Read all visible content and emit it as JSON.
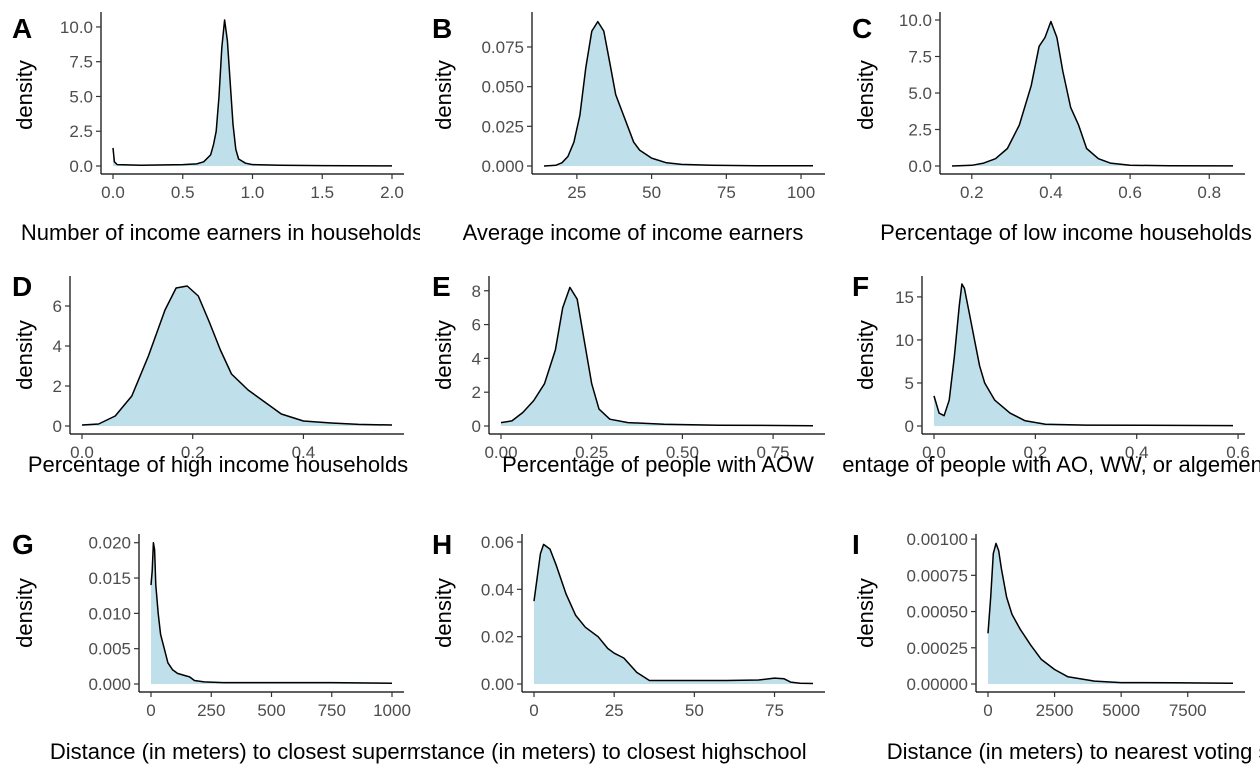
{
  "chart_data": [
    {
      "type": "area",
      "panel_label": "A",
      "xlabel": "Number of income earners in households",
      "ylabel": "density",
      "xlim": [
        0,
        2
      ],
      "ylim": [
        0,
        10.5
      ],
      "xticks": [
        {
          "v": 0,
          "label": "0.0"
        },
        {
          "v": 0.5,
          "label": "0.5"
        },
        {
          "v": 1,
          "label": "1.0"
        },
        {
          "v": 1.5,
          "label": "1.5"
        },
        {
          "v": 2,
          "label": "2.0"
        }
      ],
      "yticks": [
        {
          "v": 0,
          "label": "0.0"
        },
        {
          "v": 2.5,
          "label": "2.5"
        },
        {
          "v": 5,
          "label": "5.0"
        },
        {
          "v": 7.5,
          "label": "7.5"
        },
        {
          "v": 10,
          "label": "10.0"
        }
      ],
      "fill_color": "#bfe0ea",
      "points": [
        [
          0,
          1.3
        ],
        [
          0.01,
          0.3
        ],
        [
          0.03,
          0.1
        ],
        [
          0.2,
          0.05
        ],
        [
          0.5,
          0.1
        ],
        [
          0.6,
          0.15
        ],
        [
          0.65,
          0.3
        ],
        [
          0.7,
          0.8
        ],
        [
          0.72,
          1.5
        ],
        [
          0.74,
          2.5
        ],
        [
          0.76,
          5
        ],
        [
          0.78,
          8.5
        ],
        [
          0.8,
          10.5
        ],
        [
          0.82,
          9
        ],
        [
          0.84,
          6
        ],
        [
          0.86,
          3
        ],
        [
          0.88,
          1.2
        ],
        [
          0.9,
          0.5
        ],
        [
          0.95,
          0.2
        ],
        [
          1.0,
          0.1
        ],
        [
          1.2,
          0.05
        ],
        [
          1.5,
          0.03
        ],
        [
          2.0,
          0.01
        ]
      ]
    },
    {
      "type": "area",
      "panel_label": "B",
      "xlabel": "Average income of income earners",
      "ylabel": "density",
      "xlim": [
        14,
        104
      ],
      "ylim": [
        0,
        0.092
      ],
      "xticks": [
        {
          "v": 25,
          "label": "25"
        },
        {
          "v": 50,
          "label": "50"
        },
        {
          "v": 75,
          "label": "75"
        },
        {
          "v": 100,
          "label": "100"
        }
      ],
      "yticks": [
        {
          "v": 0,
          "label": "0.000"
        },
        {
          "v": 0.025,
          "label": "0.025"
        },
        {
          "v": 0.05,
          "label": "0.050"
        },
        {
          "v": 0.075,
          "label": "0.075"
        }
      ],
      "fill_color": "#bfe0ea",
      "points": [
        [
          14,
          0
        ],
        [
          18,
          0.0005
        ],
        [
          20,
          0.002
        ],
        [
          22,
          0.006
        ],
        [
          24,
          0.015
        ],
        [
          26,
          0.032
        ],
        [
          28,
          0.062
        ],
        [
          30,
          0.085
        ],
        [
          32,
          0.091
        ],
        [
          34,
          0.085
        ],
        [
          36,
          0.065
        ],
        [
          38,
          0.045
        ],
        [
          40,
          0.035
        ],
        [
          42,
          0.025
        ],
        [
          44,
          0.015
        ],
        [
          46,
          0.01
        ],
        [
          50,
          0.005
        ],
        [
          55,
          0.002
        ],
        [
          60,
          0.001
        ],
        [
          70,
          0.0005
        ],
        [
          85,
          0.0002
        ],
        [
          104,
          0.0001
        ]
      ]
    },
    {
      "type": "area",
      "panel_label": "C",
      "xlabel": "Percentage of low income households",
      "ylabel": "density",
      "xlim": [
        0.15,
        0.86
      ],
      "ylim": [
        0,
        10
      ],
      "xticks": [
        {
          "v": 0.2,
          "label": "0.2"
        },
        {
          "v": 0.4,
          "label": "0.4"
        },
        {
          "v": 0.6,
          "label": "0.6"
        },
        {
          "v": 0.8,
          "label": "0.8"
        }
      ],
      "yticks": [
        {
          "v": 0,
          "label": "0.0"
        },
        {
          "v": 2.5,
          "label": "2.5"
        },
        {
          "v": 5,
          "label": "5.0"
        },
        {
          "v": 7.5,
          "label": "7.5"
        },
        {
          "v": 10,
          "label": "10.0"
        }
      ],
      "fill_color": "#bfe0ea",
      "points": [
        [
          0.15,
          0
        ],
        [
          0.2,
          0.05
        ],
        [
          0.23,
          0.2
        ],
        [
          0.26,
          0.5
        ],
        [
          0.29,
          1.2
        ],
        [
          0.32,
          2.8
        ],
        [
          0.35,
          5.5
        ],
        [
          0.37,
          8.2
        ],
        [
          0.385,
          8.8
        ],
        [
          0.4,
          9.9
        ],
        [
          0.415,
          8.8
        ],
        [
          0.43,
          6.5
        ],
        [
          0.45,
          4
        ],
        [
          0.47,
          2.8
        ],
        [
          0.49,
          1.2
        ],
        [
          0.52,
          0.5
        ],
        [
          0.55,
          0.2
        ],
        [
          0.6,
          0.05
        ],
        [
          0.7,
          0.02
        ],
        [
          0.86,
          0.01
        ]
      ]
    },
    {
      "type": "area",
      "panel_label": "D",
      "xlabel": "Percentage of high income households",
      "ylabel": "density",
      "xlim": [
        0,
        0.56
      ],
      "ylim": [
        0,
        7.1
      ],
      "xticks": [
        {
          "v": 0,
          "label": "0.0"
        },
        {
          "v": 0.2,
          "label": "0.2"
        },
        {
          "v": 0.4,
          "label": "0.4"
        }
      ],
      "yticks": [
        {
          "v": 0,
          "label": "0"
        },
        {
          "v": 2,
          "label": "2"
        },
        {
          "v": 4,
          "label": "4"
        },
        {
          "v": 6,
          "label": "6"
        }
      ],
      "fill_color": "#bfe0ea",
      "points": [
        [
          0,
          0.05
        ],
        [
          0.03,
          0.1
        ],
        [
          0.06,
          0.5
        ],
        [
          0.09,
          1.5
        ],
        [
          0.12,
          3.5
        ],
        [
          0.15,
          5.8
        ],
        [
          0.17,
          6.9
        ],
        [
          0.19,
          7.0
        ],
        [
          0.21,
          6.5
        ],
        [
          0.23,
          5.2
        ],
        [
          0.25,
          3.8
        ],
        [
          0.27,
          2.6
        ],
        [
          0.3,
          1.8
        ],
        [
          0.33,
          1.2
        ],
        [
          0.36,
          0.6
        ],
        [
          0.4,
          0.25
        ],
        [
          0.45,
          0.15
        ],
        [
          0.5,
          0.08
        ],
        [
          0.56,
          0.05
        ]
      ]
    },
    {
      "type": "area",
      "panel_label": "E",
      "xlabel": "Percentage of people with AOW",
      "ylabel": "density",
      "xlim": [
        0,
        0.86
      ],
      "ylim": [
        0,
        8.4
      ],
      "xticks": [
        {
          "v": 0,
          "label": "0.00"
        },
        {
          "v": 0.25,
          "label": "0.25"
        },
        {
          "v": 0.5,
          "label": "0.50"
        },
        {
          "v": 0.75,
          "label": "0.75"
        }
      ],
      "yticks": [
        {
          "v": 0,
          "label": "0"
        },
        {
          "v": 2,
          "label": "2"
        },
        {
          "v": 4,
          "label": "4"
        },
        {
          "v": 6,
          "label": "6"
        },
        {
          "v": 8,
          "label": "8"
        }
      ],
      "fill_color": "#bfe0ea",
      "points": [
        [
          0,
          0.2
        ],
        [
          0.03,
          0.3
        ],
        [
          0.06,
          0.8
        ],
        [
          0.09,
          1.5
        ],
        [
          0.12,
          2.5
        ],
        [
          0.15,
          4.5
        ],
        [
          0.17,
          7
        ],
        [
          0.19,
          8.2
        ],
        [
          0.21,
          7.5
        ],
        [
          0.23,
          5
        ],
        [
          0.25,
          2.5
        ],
        [
          0.27,
          1
        ],
        [
          0.3,
          0.4
        ],
        [
          0.35,
          0.2
        ],
        [
          0.45,
          0.1
        ],
        [
          0.6,
          0.05
        ],
        [
          0.86,
          0.02
        ]
      ]
    },
    {
      "type": "area",
      "panel_label": "F",
      "xlabel": "Percentage of people with AO, WW, or algemene bijstand",
      "ylabel": "density",
      "xlim": [
        0,
        0.59
      ],
      "ylim": [
        0,
        16.5
      ],
      "xticks": [
        {
          "v": 0,
          "label": "0.0"
        },
        {
          "v": 0.2,
          "label": "0.2"
        },
        {
          "v": 0.4,
          "label": "0.4"
        },
        {
          "v": 0.6,
          "label": "0.6"
        }
      ],
      "yticks": [
        {
          "v": 0,
          "label": "0"
        },
        {
          "v": 5,
          "label": "5"
        },
        {
          "v": 10,
          "label": "10"
        },
        {
          "v": 15,
          "label": "15"
        }
      ],
      "fill_color": "#bfe0ea",
      "points": [
        [
          0,
          3.5
        ],
        [
          0.01,
          1.5
        ],
        [
          0.02,
          1.2
        ],
        [
          0.03,
          3
        ],
        [
          0.04,
          8
        ],
        [
          0.05,
          14
        ],
        [
          0.055,
          16.5
        ],
        [
          0.06,
          16
        ],
        [
          0.07,
          13
        ],
        [
          0.08,
          10
        ],
        [
          0.09,
          7
        ],
        [
          0.1,
          5
        ],
        [
          0.12,
          3
        ],
        [
          0.15,
          1.5
        ],
        [
          0.18,
          0.6
        ],
        [
          0.22,
          0.2
        ],
        [
          0.3,
          0.1
        ],
        [
          0.59,
          0.05
        ]
      ]
    },
    {
      "type": "area",
      "panel_label": "G",
      "xlabel": "Distance (in meters) to closest supermarket",
      "ylabel": "density",
      "xlim": [
        0,
        1000
      ],
      "ylim": [
        0,
        0.0201
      ],
      "xticks": [
        {
          "v": 0,
          "label": "0"
        },
        {
          "v": 250,
          "label": "250"
        },
        {
          "v": 500,
          "label": "500"
        },
        {
          "v": 750,
          "label": "750"
        },
        {
          "v": 1000,
          "label": "1000"
        }
      ],
      "yticks": [
        {
          "v": 0,
          "label": "0.000"
        },
        {
          "v": 0.005,
          "label": "0.005"
        },
        {
          "v": 0.01,
          "label": "0.010"
        },
        {
          "v": 0.015,
          "label": "0.015"
        },
        {
          "v": 0.02,
          "label": "0.020"
        }
      ],
      "fill_color": "#bfe0ea",
      "points": [
        [
          0,
          0.014
        ],
        [
          5,
          0.016
        ],
        [
          10,
          0.02
        ],
        [
          15,
          0.019
        ],
        [
          20,
          0.014
        ],
        [
          30,
          0.01
        ],
        [
          40,
          0.007
        ],
        [
          55,
          0.005
        ],
        [
          70,
          0.003
        ],
        [
          90,
          0.002
        ],
        [
          110,
          0.0015
        ],
        [
          140,
          0.0012
        ],
        [
          160,
          0.001
        ],
        [
          180,
          0.0005
        ],
        [
          220,
          0.0003
        ],
        [
          300,
          0.0002
        ],
        [
          500,
          0.0002
        ],
        [
          750,
          0.0002
        ],
        [
          1000,
          0.0001
        ]
      ]
    },
    {
      "type": "area",
      "panel_label": "H",
      "xlabel": "Distance (in meters) to closest highschool",
      "ylabel": "density",
      "xlim": [
        0,
        87
      ],
      "ylim": [
        0,
        0.06
      ],
      "xticks": [
        {
          "v": 0,
          "label": "0"
        },
        {
          "v": 25,
          "label": "25"
        },
        {
          "v": 50,
          "label": "50"
        },
        {
          "v": 75,
          "label": "75"
        }
      ],
      "yticks": [
        {
          "v": 0,
          "label": "0.00"
        },
        {
          "v": 0.02,
          "label": "0.02"
        },
        {
          "v": 0.04,
          "label": "0.04"
        },
        {
          "v": 0.06,
          "label": "0.06"
        }
      ],
      "fill_color": "#bfe0ea",
      "points": [
        [
          0,
          0.035
        ],
        [
          1,
          0.045
        ],
        [
          2,
          0.055
        ],
        [
          3,
          0.059
        ],
        [
          5,
          0.057
        ],
        [
          7,
          0.05
        ],
        [
          10,
          0.038
        ],
        [
          13,
          0.029
        ],
        [
          16,
          0.024
        ],
        [
          20,
          0.02
        ],
        [
          23,
          0.015
        ],
        [
          25,
          0.013
        ],
        [
          28,
          0.011
        ],
        [
          32,
          0.005
        ],
        [
          36,
          0.0015
        ],
        [
          45,
          0.0015
        ],
        [
          60,
          0.0015
        ],
        [
          70,
          0.0017
        ],
        [
          75,
          0.0025
        ],
        [
          78,
          0.0022
        ],
        [
          80,
          0.0008
        ],
        [
          83,
          0.0003
        ],
        [
          87,
          0.0002
        ]
      ]
    },
    {
      "type": "area",
      "panel_label": "I",
      "xlabel": "Distance (in meters) to nearest voting station",
      "ylabel": "density",
      "xlim": [
        0,
        9200
      ],
      "ylim": [
        0,
        0.00098
      ],
      "xticks": [
        {
          "v": 0,
          "label": "0"
        },
        {
          "v": 2500,
          "label": "2500"
        },
        {
          "v": 5000,
          "label": "5000"
        },
        {
          "v": 7500,
          "label": "7500"
        }
      ],
      "yticks": [
        {
          "v": 0,
          "label": "0.00000"
        },
        {
          "v": 0.00025,
          "label": "0.00025"
        },
        {
          "v": 0.0005,
          "label": "0.00050"
        },
        {
          "v": 0.00075,
          "label": "0.00075"
        },
        {
          "v": 0.001,
          "label": "0.00100"
        }
      ],
      "fill_color": "#bfe0ea",
      "points": [
        [
          0,
          0.00035
        ],
        [
          100,
          0.0006
        ],
        [
          200,
          0.0009
        ],
        [
          300,
          0.00097
        ],
        [
          400,
          0.00092
        ],
        [
          500,
          0.0008
        ],
        [
          700,
          0.0006
        ],
        [
          900,
          0.00048
        ],
        [
          1200,
          0.00038
        ],
        [
          1600,
          0.00027
        ],
        [
          2000,
          0.00017
        ],
        [
          2500,
          0.0001
        ],
        [
          3000,
          5e-05
        ],
        [
          4000,
          2e-05
        ],
        [
          5000,
          1e-05
        ],
        [
          7000,
          8e-06
        ],
        [
          9200,
          5e-06
        ]
      ]
    }
  ]
}
